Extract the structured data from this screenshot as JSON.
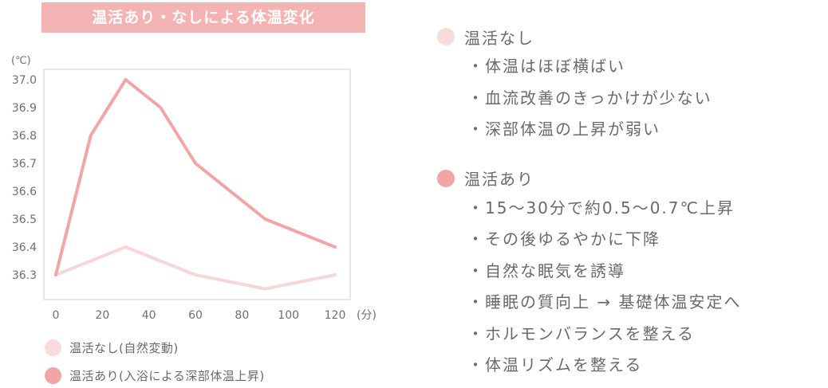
{
  "title": "温活あり・なしによる体温変化",
  "chart_data": {
    "type": "line",
    "title": "温活あり・なしによる体温変化",
    "ylabel": "(℃)",
    "xlabel": "(分)",
    "x": [
      0,
      15,
      30,
      45,
      60,
      90,
      120
    ],
    "xticks": [
      0,
      20,
      40,
      60,
      80,
      100,
      120
    ],
    "xtick_labels": [
      "0",
      "20",
      "40",
      "60",
      "80",
      "100",
      "120"
    ],
    "yticks": [
      36.3,
      36.4,
      36.5,
      36.6,
      36.7,
      36.8,
      36.9,
      37.0
    ],
    "ytick_labels": [
      "36.3",
      "36.4",
      "36.5",
      "36.6",
      "36.7",
      "36.8",
      "36.9",
      "37.0"
    ],
    "ylim": [
      36.3,
      37.0
    ],
    "xlim": [
      0,
      120
    ],
    "grid": false,
    "series": [
      {
        "name": "温活なし(自然変動)",
        "color": "#f7d6d8",
        "points": [
          [
            0,
            36.3
          ],
          [
            30,
            36.4
          ],
          [
            60,
            36.3
          ],
          [
            90,
            36.25
          ],
          [
            120,
            36.3
          ]
        ]
      },
      {
        "name": "温活あり(入浴による深部体温上昇)",
        "color": "#f2a5a5",
        "points": [
          [
            0,
            36.3
          ],
          [
            15,
            36.8
          ],
          [
            30,
            37.0
          ],
          [
            45,
            36.9
          ],
          [
            60,
            36.7
          ],
          [
            90,
            36.5
          ],
          [
            120,
            36.4
          ]
        ]
      }
    ],
    "legend_position": "bottom-left"
  },
  "legend": {
    "without": "温活なし(自然変動)",
    "with": "温活あり(入浴による深部体温上昇)"
  },
  "panel": {
    "without": {
      "heading": "温活なし",
      "color": "#f8dcdd",
      "items": [
        "・体温はほぼ横ばい",
        "・血流改善のきっかけが少ない",
        "・深部体温の上昇が弱い"
      ]
    },
    "with": {
      "heading": "温活あり",
      "color": "#f2a5a5",
      "items": [
        "・15〜30分で約0.5〜0.7℃上昇",
        "・その後ゆるやかに下降",
        "・自然な眠気を誘導",
        "・睡眠の質向上 → 基礎体温安定へ",
        "・ホルモンバランスを整える",
        "・体温リズムを整える"
      ]
    }
  }
}
